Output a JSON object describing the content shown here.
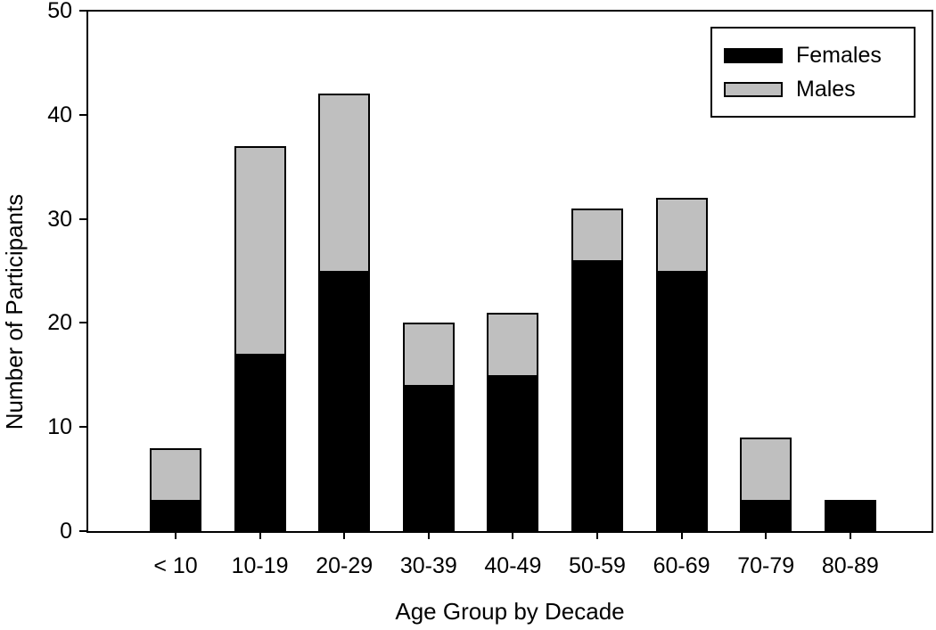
{
  "chart_data": {
    "type": "bar",
    "stacked": true,
    "title": "",
    "xlabel": "Age Group by Decade",
    "ylabel": "Number of Participants",
    "categories": [
      "< 10",
      "10-19",
      "20-29",
      "30-39",
      "40-49",
      "50-59",
      "60-69",
      "70-79",
      "80-89"
    ],
    "series": [
      {
        "name": "Females",
        "color": "#000000",
        "values": [
          3,
          17,
          25,
          14,
          15,
          26,
          25,
          3,
          3
        ]
      },
      {
        "name": "Males",
        "color": "#bfbfbf",
        "values": [
          5,
          20,
          17,
          6,
          6,
          5,
          7,
          6,
          0
        ]
      }
    ],
    "totals": [
      8,
      37,
      42,
      20,
      21,
      31,
      32,
      9,
      3
    ],
    "ylim": [
      0,
      50
    ],
    "yticks": [
      0,
      10,
      20,
      30,
      40,
      50
    ],
    "legend_position": "top-right",
    "legend_labels": [
      "Females",
      "Males"
    ],
    "grid": false,
    "bar_border_color": "#000000",
    "axis_color": "#000000",
    "background_color": "#ffffff"
  }
}
